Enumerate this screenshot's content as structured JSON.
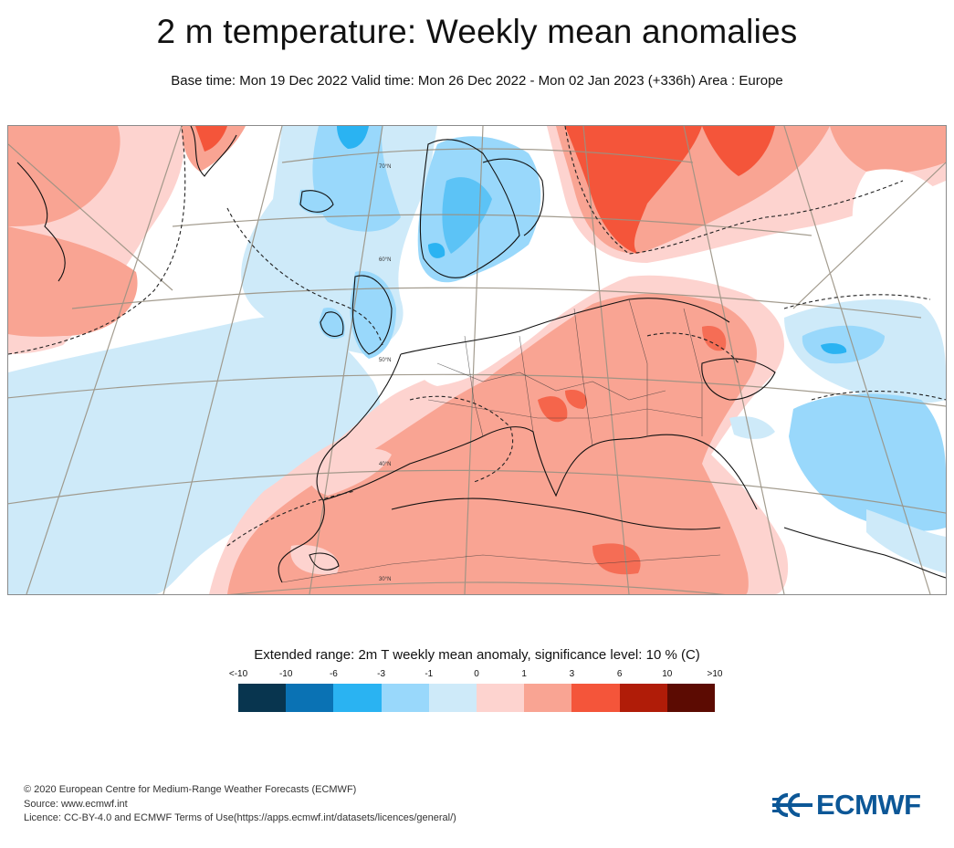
{
  "title": "2 m temperature: Weekly mean anomalies",
  "subtitle": "Base time: Mon 19 Dec 2022 Valid time: Mon 26 Dec 2022 - Mon 02 Jan 2023 (+336h) Area : Europe",
  "map": {
    "lat_labels": [
      "70°N",
      "60°N",
      "50°N",
      "40°N",
      "30°N"
    ]
  },
  "legend": {
    "title": "Extended range: 2m T weekly mean anomaly, significance level: 10 % (C)",
    "ticks": [
      "<-10",
      "-10",
      "-6",
      "-3",
      "-1",
      "0",
      "1",
      "3",
      "6",
      "10",
      ">10"
    ],
    "colors": [
      "#08354f",
      "#0a72b4",
      "#2ab3f2",
      "#99d8fb",
      "#ceeaf9",
      "#fdd3cf",
      "#f9a493",
      "#f4553a",
      "#b01c08",
      "#5c0b02"
    ]
  },
  "footer": {
    "copyright": "© 2020 European Centre for Medium-Range Weather Forecasts (ECMWF)",
    "source": "Source: www.ecmwf.int",
    "licence": "Licence: CC-BY-4.0 and ECMWF Terms of Use(https://apps.ecmwf.int/datasets/licences/general/)"
  },
  "logo": {
    "text": "ECMWF",
    "color": "#0c5797"
  }
}
